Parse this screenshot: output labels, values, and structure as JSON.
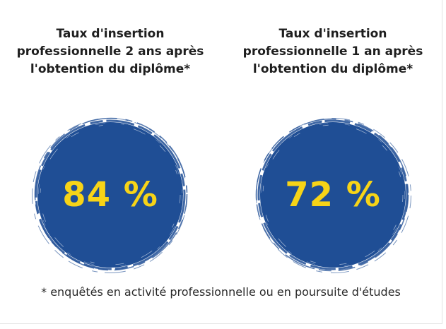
{
  "stats": [
    {
      "title_lines": [
        "Taux d'insertion",
        "professionnelle 2 ans après",
        "l'obtention du diplôme*"
      ],
      "value": "84 %"
    },
    {
      "title_lines": [
        "Taux d'insertion",
        "professionnelle 1 an après",
        "l'obtention du diplôme*"
      ],
      "value": "72 %"
    }
  ],
  "footnote": "* enquêtés en activité professionnelle ou en poursuite d'études",
  "colors": {
    "circle_fill": "#1f4e95",
    "value_text": "#f7d417",
    "title_text": "#1e1e1e"
  }
}
